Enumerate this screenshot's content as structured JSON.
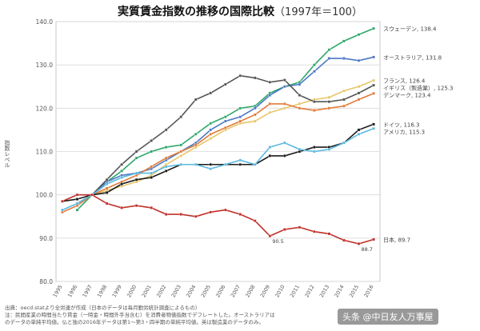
{
  "chart_data": {
    "type": "line",
    "title": "実質賃金指数の推移の国際比較",
    "subtitle": "（1997年＝100）",
    "ylabel": "指数レベル",
    "ylim": [
      80,
      140
    ],
    "yticks": [
      "80.0",
      "90.0",
      "100.0",
      "110.0",
      "120.0",
      "130.0",
      "140.0"
    ],
    "categories": [
      "1995",
      "1996",
      "1997",
      "1998",
      "1999",
      "2000",
      "2001",
      "2002",
      "2003",
      "2004",
      "2005",
      "2006",
      "2007",
      "2008",
      "2009",
      "2010",
      "2011",
      "2012",
      "2013",
      "2014",
      "2015",
      "2016"
    ],
    "grid": true,
    "series": [
      {
        "name": "スウェーデン",
        "end_label": "スウェーデン, 138.4",
        "color": "#2ca76a",
        "values": [
          null,
          96.5,
          100,
          103,
          105.5,
          108.5,
          110,
          111,
          111.5,
          114,
          116.5,
          118,
          120,
          120.5,
          123.5,
          125,
          126,
          130,
          133.5,
          135.5,
          137,
          138.4
        ]
      },
      {
        "name": "オーストラリア",
        "end_label": "オーストラリア, 131.8",
        "color": "#4a78c4",
        "values": [
          null,
          null,
          100,
          103,
          104.5,
          105,
          106,
          108,
          110,
          112,
          115,
          117,
          118,
          120,
          123,
          125,
          125.5,
          128.5,
          131.5,
          131.5,
          131,
          131.8
        ]
      },
      {
        "name": "フランス",
        "end_label": "フランス, 126.4",
        "color": "#e8c66a",
        "values": [
          null,
          null,
          100,
          101,
          102,
          103,
          104.5,
          107,
          109,
          111,
          113,
          115,
          116.5,
          117,
          119,
          120,
          121,
          122,
          122.5,
          124,
          125,
          126.4
        ]
      },
      {
        "name": "イギリス（製造業）",
        "end_label": "イギリス（製造業）, 125.3",
        "color": "#555555",
        "values": [
          null,
          98,
          100,
          103.5,
          107,
          110,
          112.5,
          115,
          118,
          122,
          123.5,
          125.5,
          127.5,
          127,
          126,
          126.5,
          123,
          121.5,
          121.5,
          122,
          123.5,
          125.3
        ]
      },
      {
        "name": "デンマーク",
        "end_label": "デンマーク, 123.4",
        "color": "#e07b39",
        "values": [
          96,
          97.5,
          100,
          101.5,
          103,
          104.5,
          106.5,
          108.5,
          110,
          111.5,
          114,
          115.5,
          117,
          118.5,
          121,
          121,
          120,
          119.5,
          120,
          120.5,
          122,
          123.4
        ]
      },
      {
        "name": "ドイツ",
        "end_label": "ドイツ, 116.3",
        "color": "#1a1a1a",
        "values": [
          98.5,
          99,
          100,
          100.5,
          102.5,
          103.5,
          104,
          105.5,
          107,
          107,
          107,
          107,
          107,
          107,
          109,
          109,
          110,
          111,
          111,
          112,
          115,
          116.3
        ]
      },
      {
        "name": "アメリカ",
        "end_label": "アメリカ, 115.3",
        "color": "#5bb8e0",
        "values": [
          96.5,
          98,
          100,
          102.5,
          104,
          105,
          105,
          106.5,
          107,
          107,
          106,
          107,
          108,
          107,
          111,
          112,
          110.5,
          110,
          110.5,
          112,
          114,
          115.3
        ]
      },
      {
        "name": "日本",
        "end_label": "日本, 89.7",
        "color": "#c0302a",
        "values": [
          98.5,
          100,
          100,
          98,
          97,
          97.5,
          97,
          95.5,
          95.5,
          95,
          96,
          96.5,
          95.5,
          94,
          90.5,
          92,
          92.5,
          91.5,
          91,
          89.5,
          88.7,
          89.7
        ]
      }
    ],
    "annotations": [
      {
        "text": "90.5",
        "x": "2009",
        "y": 90.5
      },
      {
        "text": "88.7",
        "x": "2015",
        "y": 88.7
      }
    ]
  },
  "footnotes": [
    "出典：oecd.statより全労連が作成（日本のデータは毎月勤労統計調査によるもの）",
    "注：民間産業の時間当たり賃金（一時金・時間外手当含む）を消費者物価指数でデフレートした。オーストラリアは",
    "のデータの単純平均値。仏と独の2016年データは第1～第3・四半期の単純平均値。英は製造業のデータのみ。"
  ],
  "watermark": "头条 @中日友人万事屋"
}
